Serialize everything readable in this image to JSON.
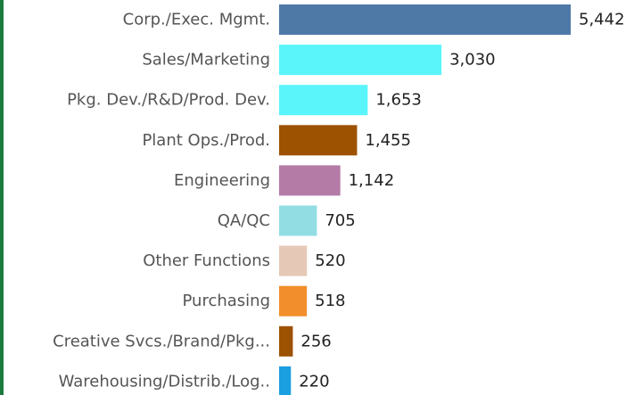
{
  "chart_data": {
    "type": "bar",
    "orientation": "horizontal",
    "categories": [
      "Corp./Exec. Mgmt.",
      "Sales/Marketing",
      "Pkg. Dev./R&D/Prod. Dev.",
      "Plant Ops./Prod.",
      "Engineering",
      "QA/QC",
      "Other Functions",
      "Purchasing",
      "Creative Svcs./Brand/Pkg...",
      "Warehousing/Distrib./Log.."
    ],
    "values": [
      5442,
      3030,
      1653,
      1455,
      1142,
      705,
      520,
      518,
      256,
      220
    ],
    "value_labels": [
      "5,442",
      "3,030",
      "1,653",
      "1,455",
      "1,142",
      "705",
      "520",
      "518",
      "256",
      "220"
    ],
    "colors": [
      "#4e79a7",
      "#59f5fb",
      "#59f5fb",
      "#9c5200",
      "#b47ba6",
      "#91dde3",
      "#e6c8b6",
      "#f28e2b",
      "#9c5200",
      "#1a9fe0"
    ]
  }
}
